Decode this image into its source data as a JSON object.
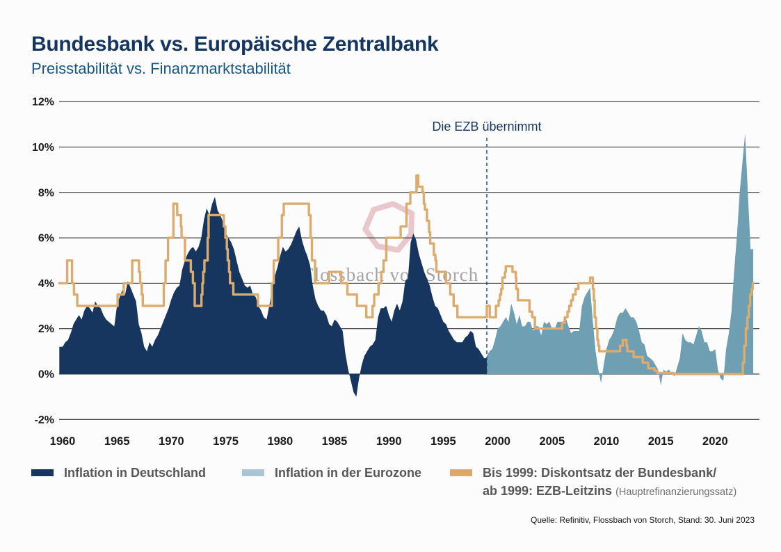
{
  "header": {
    "title": "Bundesbank vs. Europäische Zentralbank",
    "subtitle": "Preisstabilität vs. Finanzmarktstabilität"
  },
  "watermark": {
    "text": "Flossbach von Storch",
    "ring_color": "#d89ba3",
    "text_color": "#8f8f8f"
  },
  "legend": {
    "items": [
      {
        "label": "Inflation in Deutschland",
        "swatch": "#16365f"
      },
      {
        "label": "Inflation in der Eurozone",
        "swatch": "#a9c6d2"
      },
      {
        "label_line1": "Bis 1999: Diskontsatz der Bundesbank/",
        "label_line2": "ab 1999: EZB-Leitzins",
        "label_suffix": "(Hauptrefinanzierungssatz)",
        "swatch": "#dca76a"
      }
    ]
  },
  "source": "Quelle: Refinitiv, Flossbach von Storch, Stand: 30. Juni 2023",
  "colors": {
    "title_navy": "#14355f",
    "subtitle_blue": "#19547c",
    "germany_area": "#16365f",
    "eurozone_area": "#6f9fb3",
    "rate_line": "#dcab6e",
    "gridline": "#1a1a1a",
    "divider": "#1f4068"
  },
  "chart_data": {
    "type": "area",
    "title": "Bundesbank vs. Europäische Zentralbank",
    "subtitle": "Preisstabilität vs. Finanzmarktstabilität",
    "unit": "%",
    "grid": "horizontal",
    "legend_position": "bottom",
    "xlim": [
      1959.7,
      2023.5
    ],
    "ylim": [
      -2,
      12
    ],
    "x_ticks": [
      1960,
      1965,
      1970,
      1975,
      1980,
      1985,
      1990,
      1995,
      2000,
      2005,
      2010,
      2015,
      2020
    ],
    "y_ticks": [
      12,
      10,
      8,
      6,
      4,
      2,
      0,
      -2
    ],
    "annotation": {
      "text": "Die EZB übernimmt",
      "x": 1999
    },
    "series": [
      {
        "name": "Inflation in Deutschland",
        "type": "area",
        "color": "#16365f",
        "start": 1960,
        "step": 0.25,
        "values": [
          1.2,
          1.4,
          1.5,
          1.8,
          2.2,
          2.4,
          2.6,
          2.4,
          2.8,
          3.0,
          2.9,
          2.7,
          3.2,
          3.0,
          2.9,
          2.6,
          2.4,
          2.3,
          2.2,
          2.1,
          3.0,
          3.4,
          3.7,
          3.5,
          4.1,
          3.8,
          3.5,
          3.2,
          2.2,
          1.8,
          1.2,
          1.0,
          1.4,
          1.2,
          1.5,
          1.7,
          2.0,
          2.3,
          2.6,
          2.9,
          3.3,
          3.6,
          3.8,
          3.9,
          4.6,
          5.0,
          5.3,
          5.5,
          5.6,
          5.4,
          5.6,
          6.0,
          6.8,
          7.3,
          7.0,
          7.5,
          7.8,
          7.2,
          7.0,
          6.7,
          6.2,
          6.0,
          5.8,
          5.5,
          5.0,
          4.5,
          4.2,
          3.9,
          3.8,
          3.9,
          3.5,
          3.4,
          3.0,
          2.8,
          2.5,
          2.4,
          3.0,
          3.7,
          4.3,
          4.7,
          5.2,
          5.6,
          5.4,
          5.5,
          5.7,
          6.0,
          6.3,
          6.5,
          5.9,
          5.5,
          5.2,
          4.8,
          3.9,
          3.3,
          3.0,
          2.8,
          2.8,
          2.6,
          2.2,
          2.1,
          2.4,
          2.3,
          2.1,
          1.9,
          0.9,
          0.2,
          -0.3,
          -0.8,
          -1.0,
          -0.2,
          0.4,
          0.8,
          1.0,
          1.2,
          1.3,
          1.5,
          2.5,
          2.9,
          2.9,
          3.0,
          2.6,
          2.3,
          2.8,
          3.1,
          2.8,
          3.2,
          4.1,
          4.2,
          5.8,
          6.2,
          5.9,
          5.3,
          4.9,
          4.5,
          4.2,
          3.9,
          3.4,
          3.0,
          2.9,
          2.6,
          2.3,
          2.2,
          1.9,
          1.7,
          1.5,
          1.4,
          1.4,
          1.4,
          1.6,
          1.7,
          1.9,
          1.8,
          1.2,
          1.1,
          0.9,
          0.7
        ]
      },
      {
        "name": "Inflation in der Eurozone",
        "type": "area",
        "color": "#6f9fb3",
        "start": 1999,
        "step": 0.25,
        "values": [
          0.8,
          1.0,
          1.1,
          1.5,
          2.0,
          2.1,
          2.3,
          2.5,
          2.3,
          3.1,
          2.7,
          2.2,
          2.6,
          2.1,
          2.1,
          2.3,
          2.3,
          1.9,
          2.1,
          2.1,
          1.7,
          2.3,
          2.2,
          2.3,
          2.0,
          2.0,
          2.3,
          2.3,
          2.3,
          2.5,
          2.1,
          1.8,
          1.9,
          1.9,
          1.9,
          3.0,
          3.4,
          3.6,
          3.8,
          2.3,
          1.0,
          0.2,
          -0.4,
          0.4,
          1.1,
          1.5,
          1.7,
          2.0,
          2.5,
          2.7,
          2.7,
          2.9,
          2.7,
          2.5,
          2.5,
          2.3,
          1.9,
          1.4,
          1.3,
          0.8,
          0.7,
          0.6,
          0.4,
          0.2,
          -0.5,
          0.2,
          0.1,
          0.2,
          0.0,
          -0.1,
          0.3,
          0.7,
          1.8,
          1.5,
          1.4,
          1.4,
          1.3,
          1.7,
          2.1,
          1.9,
          1.4,
          1.4,
          1.0,
          1.0,
          1.1,
          0.2,
          -0.2,
          -0.3,
          1.1,
          1.8,
          2.8,
          4.6,
          6.1,
          8.0,
          9.3,
          10.6,
          8.0,
          5.5
        ]
      },
      {
        "name": "Bis 1999: Diskontsatz der Bundesbank / ab 1999: EZB-Leitzins (Hauptrefinanzierungssatz)",
        "type": "step_line",
        "color": "#dcab6e",
        "points": [
          [
            1960.0,
            4.0
          ],
          [
            1960.42,
            5.0
          ],
          [
            1960.87,
            4.0
          ],
          [
            1961.05,
            3.5
          ],
          [
            1961.35,
            3.0
          ],
          [
            1965.06,
            3.5
          ],
          [
            1965.62,
            4.0
          ],
          [
            1966.4,
            5.0
          ],
          [
            1967.02,
            4.5
          ],
          [
            1967.13,
            4.0
          ],
          [
            1967.28,
            3.5
          ],
          [
            1967.37,
            3.0
          ],
          [
            1969.3,
            4.0
          ],
          [
            1969.47,
            5.0
          ],
          [
            1969.69,
            6.0
          ],
          [
            1970.19,
            7.5
          ],
          [
            1970.54,
            7.0
          ],
          [
            1970.88,
            6.5
          ],
          [
            1970.94,
            6.0
          ],
          [
            1971.25,
            5.0
          ],
          [
            1971.79,
            4.5
          ],
          [
            1971.98,
            4.0
          ],
          [
            1972.15,
            3.0
          ],
          [
            1972.77,
            3.5
          ],
          [
            1972.85,
            4.0
          ],
          [
            1972.93,
            4.5
          ],
          [
            1973.04,
            5.0
          ],
          [
            1973.34,
            6.0
          ],
          [
            1973.42,
            7.0
          ],
          [
            1974.82,
            6.5
          ],
          [
            1974.97,
            6.0
          ],
          [
            1975.1,
            5.5
          ],
          [
            1975.18,
            5.0
          ],
          [
            1975.31,
            4.5
          ],
          [
            1975.39,
            4.0
          ],
          [
            1975.7,
            3.5
          ],
          [
            1977.96,
            3.0
          ],
          [
            1979.24,
            4.0
          ],
          [
            1979.41,
            5.0
          ],
          [
            1979.83,
            6.0
          ],
          [
            1980.16,
            7.0
          ],
          [
            1980.33,
            7.5
          ],
          [
            1982.65,
            7.0
          ],
          [
            1982.8,
            6.0
          ],
          [
            1982.92,
            5.0
          ],
          [
            1983.21,
            4.0
          ],
          [
            1984.5,
            4.5
          ],
          [
            1985.62,
            4.0
          ],
          [
            1986.18,
            3.5
          ],
          [
            1987.06,
            3.0
          ],
          [
            1987.92,
            2.5
          ],
          [
            1988.5,
            3.0
          ],
          [
            1988.65,
            3.5
          ],
          [
            1989.05,
            4.0
          ],
          [
            1989.3,
            4.5
          ],
          [
            1989.5,
            5.0
          ],
          [
            1989.76,
            6.0
          ],
          [
            1991.08,
            6.5
          ],
          [
            1991.62,
            7.5
          ],
          [
            1991.97,
            8.0
          ],
          [
            1992.54,
            8.75
          ],
          [
            1992.7,
            8.25
          ],
          [
            1993.09,
            8.0
          ],
          [
            1993.21,
            7.5
          ],
          [
            1993.31,
            7.25
          ],
          [
            1993.5,
            6.75
          ],
          [
            1993.69,
            6.25
          ],
          [
            1993.8,
            5.75
          ],
          [
            1994.13,
            5.25
          ],
          [
            1994.28,
            5.0
          ],
          [
            1994.36,
            4.5
          ],
          [
            1995.25,
            4.0
          ],
          [
            1995.64,
            3.5
          ],
          [
            1995.95,
            3.0
          ],
          [
            1996.3,
            2.5
          ],
          [
            1999.0,
            3.0
          ],
          [
            1999.27,
            2.5
          ],
          [
            1999.84,
            3.0
          ],
          [
            2000.09,
            3.25
          ],
          [
            2000.21,
            3.5
          ],
          [
            2000.32,
            3.75
          ],
          [
            2000.44,
            4.25
          ],
          [
            2000.67,
            4.5
          ],
          [
            2000.75,
            4.75
          ],
          [
            2001.36,
            4.5
          ],
          [
            2001.66,
            4.25
          ],
          [
            2001.71,
            3.75
          ],
          [
            2001.86,
            3.25
          ],
          [
            2002.92,
            2.75
          ],
          [
            2003.17,
            2.5
          ],
          [
            2003.42,
            2.0
          ],
          [
            2005.92,
            2.25
          ],
          [
            2006.17,
            2.5
          ],
          [
            2006.42,
            2.75
          ],
          [
            2006.58,
            3.0
          ],
          [
            2006.75,
            3.25
          ],
          [
            2006.92,
            3.5
          ],
          [
            2007.17,
            3.75
          ],
          [
            2007.42,
            4.0
          ],
          [
            2008.5,
            4.25
          ],
          [
            2008.75,
            3.75
          ],
          [
            2008.84,
            3.25
          ],
          [
            2008.92,
            2.5
          ],
          [
            2009.04,
            2.0
          ],
          [
            2009.17,
            1.5
          ],
          [
            2009.25,
            1.25
          ],
          [
            2009.34,
            1.0
          ],
          [
            2011.25,
            1.25
          ],
          [
            2011.5,
            1.5
          ],
          [
            2011.84,
            1.25
          ],
          [
            2011.92,
            1.0
          ],
          [
            2012.5,
            0.75
          ],
          [
            2013.34,
            0.5
          ],
          [
            2013.84,
            0.25
          ],
          [
            2014.42,
            0.15
          ],
          [
            2014.67,
            0.05
          ],
          [
            2016.17,
            0.0
          ],
          [
            2022.54,
            0.5
          ],
          [
            2022.67,
            1.25
          ],
          [
            2022.82,
            2.0
          ],
          [
            2022.96,
            2.5
          ],
          [
            2023.09,
            3.0
          ],
          [
            2023.21,
            3.5
          ],
          [
            2023.34,
            3.75
          ],
          [
            2023.45,
            4.0
          ]
        ]
      }
    ]
  }
}
